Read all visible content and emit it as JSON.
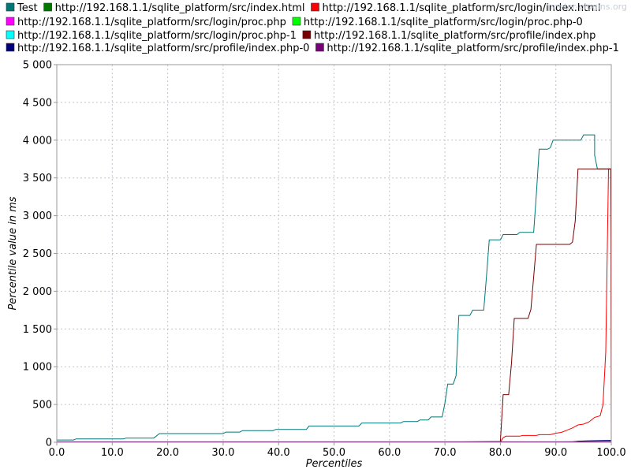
{
  "watermark": "jmeter-plugins.org",
  "chart_data": {
    "type": "line",
    "xlabel": "Percentiles",
    "ylabel": "Percentile value in ms",
    "xlim": [
      0,
      100
    ],
    "ylim": [
      0,
      5000
    ],
    "x_ticks": [
      "0.0",
      "10.0",
      "20.0",
      "30.0",
      "40.0",
      "50.0",
      "60.0",
      "70.0",
      "80.0",
      "90.0",
      "100.0"
    ],
    "y_ticks": [
      "0",
      "500",
      "1 000",
      "1 500",
      "2 000",
      "2 500",
      "3 000",
      "3 500",
      "4 000",
      "4 500",
      "5 000"
    ],
    "y_tick_values": [
      0,
      500,
      1000,
      1500,
      2000,
      2500,
      3000,
      3500,
      4000,
      4500,
      5000
    ],
    "grid": true,
    "legend_position": "top",
    "series": [
      {
        "name": "Test",
        "color": "#007878",
        "points": [
          [
            0,
            30
          ],
          [
            3,
            30
          ],
          [
            3.5,
            45
          ],
          [
            12,
            45
          ],
          [
            12.5,
            55
          ],
          [
            17.5,
            55
          ],
          [
            18.5,
            115
          ],
          [
            30,
            115
          ],
          [
            30.5,
            135
          ],
          [
            33,
            135
          ],
          [
            33.5,
            155
          ],
          [
            39,
            155
          ],
          [
            39.5,
            170
          ],
          [
            45,
            170
          ],
          [
            45.5,
            215
          ],
          [
            54.5,
            215
          ],
          [
            55,
            255
          ],
          [
            62,
            255
          ],
          [
            62.5,
            275
          ],
          [
            65,
            275
          ],
          [
            65.5,
            295
          ],
          [
            67,
            295
          ],
          [
            67.5,
            335
          ],
          [
            69.5,
            335
          ],
          [
            70,
            520
          ],
          [
            70.5,
            770
          ],
          [
            71.5,
            770
          ],
          [
            72,
            880
          ],
          [
            72.5,
            1680
          ],
          [
            74.5,
            1680
          ],
          [
            75,
            1750
          ],
          [
            77,
            1750
          ],
          [
            77.5,
            2200
          ],
          [
            78,
            2680
          ],
          [
            80,
            2680
          ],
          [
            80.5,
            2750
          ],
          [
            83,
            2750
          ],
          [
            83.5,
            2780
          ],
          [
            86,
            2780
          ],
          [
            86.5,
            3300
          ],
          [
            87,
            3880
          ],
          [
            88.5,
            3880
          ],
          [
            89,
            3900
          ],
          [
            89.5,
            4000
          ],
          [
            94.5,
            4000
          ],
          [
            95,
            4070
          ],
          [
            97,
            4070
          ],
          [
            97,
            3800
          ],
          [
            97.5,
            3620
          ],
          [
            99.9,
            3620
          ],
          [
            100,
            0
          ]
        ]
      },
      {
        "name": "http://192.168.1.1/sqlite_platform/src/index.html",
        "color": "#007800",
        "points": [
          [
            0,
            2
          ],
          [
            90,
            2
          ],
          [
            93,
            5
          ],
          [
            96,
            10
          ],
          [
            99.5,
            15
          ],
          [
            100,
            20
          ]
        ]
      },
      {
        "name": "http://192.168.1.1/sqlite_platform/src/login/index.html",
        "color": "#ff0000",
        "points": [
          [
            0,
            2
          ],
          [
            80,
            2
          ],
          [
            80.5,
            60
          ],
          [
            81,
            80
          ],
          [
            83.5,
            80
          ],
          [
            84,
            90
          ],
          [
            86.5,
            90
          ],
          [
            87,
            100
          ],
          [
            89,
            100
          ],
          [
            90,
            120
          ],
          [
            91,
            130
          ],
          [
            92,
            160
          ],
          [
            93,
            190
          ],
          [
            94,
            230
          ],
          [
            95,
            240
          ],
          [
            96,
            270
          ],
          [
            97,
            330
          ],
          [
            98,
            350
          ],
          [
            98.5,
            500
          ],
          [
            99,
            1200
          ],
          [
            99.5,
            3620
          ],
          [
            99.9,
            3620
          ],
          [
            100,
            0
          ]
        ]
      },
      {
        "name": "http://192.168.1.1/sqlite_platform/src/login/proc.php",
        "color": "#ff00ff",
        "points": [
          [
            0,
            3
          ],
          [
            100,
            3
          ]
        ]
      },
      {
        "name": "http://192.168.1.1/sqlite_platform/src/login/proc.php-0",
        "color": "#00ff00",
        "points": [
          [
            0,
            2
          ],
          [
            90,
            2
          ],
          [
            94,
            10
          ],
          [
            99.5,
            15
          ],
          [
            100,
            15
          ]
        ]
      },
      {
        "name": "http://192.168.1.1/sqlite_platform/src/login/proc.php-1",
        "color": "#00ffff",
        "points": [
          [
            0,
            1
          ],
          [
            100,
            1
          ]
        ]
      },
      {
        "name": "http://192.168.1.1/sqlite_platform/src/profile/index.php",
        "color": "#780000",
        "points": [
          [
            0,
            5
          ],
          [
            73,
            5
          ],
          [
            80,
            10
          ],
          [
            80.5,
            630
          ],
          [
            81.5,
            630
          ],
          [
            82,
            1050
          ],
          [
            82.5,
            1640
          ],
          [
            85,
            1640
          ],
          [
            85.5,
            1760
          ],
          [
            86.5,
            2620
          ],
          [
            92.5,
            2620
          ],
          [
            93,
            2650
          ],
          [
            93.5,
            2930
          ],
          [
            94,
            3620
          ],
          [
            99.9,
            3620
          ],
          [
            100,
            1220
          ]
        ]
      },
      {
        "name": "http://192.168.1.1/sqlite_platform/src/profile/index.php-0",
        "color": "#000078",
        "points": [
          [
            0,
            4
          ],
          [
            93,
            5
          ],
          [
            94,
            15
          ],
          [
            96,
            20
          ],
          [
            99.5,
            25
          ],
          [
            100,
            25
          ]
        ]
      },
      {
        "name": "http://192.168.1.1/sqlite_platform/src/profile/index.php-1",
        "color": "#780078",
        "points": [
          [
            0,
            6
          ],
          [
            100,
            6
          ]
        ]
      }
    ]
  }
}
